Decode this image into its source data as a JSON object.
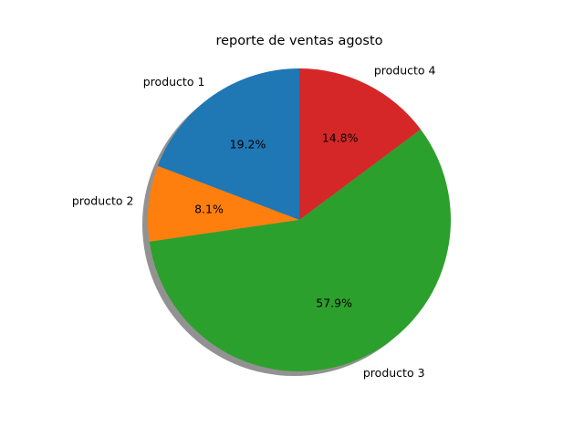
{
  "chart_data": {
    "type": "pie",
    "title": "reporte de ventas agosto",
    "categories": [
      "producto 1",
      "producto 2",
      "producto 3",
      "producto 4"
    ],
    "values": [
      19.2,
      8.1,
      57.9,
      14.8
    ],
    "value_labels": [
      "19.2%",
      "8.1%",
      "57.9%",
      "14.8%"
    ],
    "colors": [
      "#1f77b4",
      "#ff7f0e",
      "#2ca02c",
      "#d62728"
    ],
    "start_angle_deg": 90,
    "direction": "counterclockwise",
    "shadow": true
  }
}
